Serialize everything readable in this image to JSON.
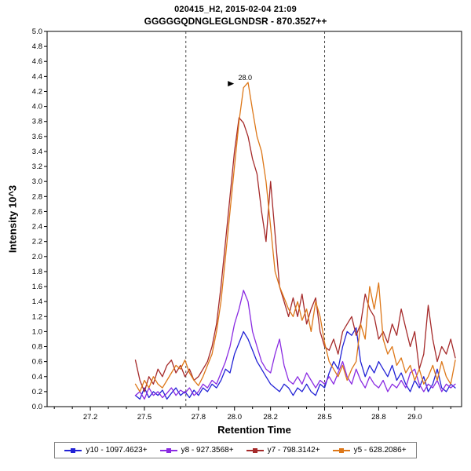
{
  "chart_data": {
    "type": "line",
    "title": "020415_H2, 2015-02-04 21:09",
    "subtitle": "GGGGGQDNGLEGLGNDSR - 870.3527++",
    "xlabel": "Retention Time",
    "ylabel": "Intensity 10^3",
    "xlim": [
      26.96,
      29.26
    ],
    "ylim": [
      0,
      5
    ],
    "y_tick_step": 0.2,
    "x_major_ticks": [
      27.2,
      27.5,
      27.8,
      28.0,
      28.2,
      28.5,
      28.8,
      29.0
    ],
    "x_minor_tick_step": 0.1,
    "grid": false,
    "legend_position": "bottom",
    "peak_boundaries": [
      27.73,
      28.5
    ],
    "annotation": {
      "label": "28.0",
      "x": 28.05,
      "y": 4.35,
      "color": "#cc5500"
    },
    "x_start": 27.45,
    "x_step": 0.025,
    "series": [
      {
        "name": "y10 - 1097.4623+",
        "color": "#2222d6",
        "values": [
          0.15,
          0.1,
          0.25,
          0.12,
          0.2,
          0.15,
          0.22,
          0.1,
          0.18,
          0.25,
          0.15,
          0.2,
          0.12,
          0.22,
          0.15,
          0.25,
          0.2,
          0.3,
          0.25,
          0.35,
          0.5,
          0.45,
          0.7,
          0.85,
          1.0,
          0.9,
          0.75,
          0.6,
          0.5,
          0.4,
          0.3,
          0.25,
          0.2,
          0.3,
          0.25,
          0.15,
          0.25,
          0.2,
          0.3,
          0.2,
          0.15,
          0.3,
          0.25,
          0.45,
          0.6,
          0.5,
          0.8,
          1.0,
          0.95,
          1.05,
          0.6,
          0.4,
          0.55,
          0.45,
          0.6,
          0.5,
          0.4,
          0.55,
          0.35,
          0.45,
          0.3,
          0.2,
          0.35,
          0.25,
          0.4,
          0.2,
          0.3,
          0.5,
          0.25,
          0.2,
          0.3,
          0.25
        ]
      },
      {
        "name": "y8 - 927.3568+",
        "color": "#8a2be2",
        "values": [
          0.15,
          0.2,
          0.1,
          0.25,
          0.15,
          0.2,
          0.12,
          0.18,
          0.25,
          0.15,
          0.22,
          0.18,
          0.25,
          0.15,
          0.2,
          0.3,
          0.25,
          0.35,
          0.3,
          0.45,
          0.6,
          0.8,
          1.1,
          1.3,
          1.55,
          1.4,
          1.0,
          0.8,
          0.6,
          0.5,
          0.45,
          0.7,
          0.9,
          0.55,
          0.35,
          0.3,
          0.4,
          0.3,
          0.45,
          0.35,
          0.25,
          0.35,
          0.3,
          0.4,
          0.3,
          0.45,
          0.6,
          0.4,
          0.3,
          0.5,
          0.35,
          0.25,
          0.4,
          0.3,
          0.25,
          0.35,
          0.2,
          0.3,
          0.25,
          0.35,
          0.25,
          0.45,
          0.5,
          0.3,
          0.2,
          0.3,
          0.25,
          0.35,
          0.2,
          0.3,
          0.25,
          0.3
        ]
      },
      {
        "name": "y7 - 798.3142+",
        "color": "#a52a2a",
        "values": [
          0.62,
          0.35,
          0.2,
          0.4,
          0.3,
          0.5,
          0.4,
          0.55,
          0.62,
          0.45,
          0.55,
          0.4,
          0.5,
          0.35,
          0.4,
          0.5,
          0.6,
          0.8,
          1.1,
          1.6,
          2.2,
          2.8,
          3.4,
          3.85,
          3.78,
          3.6,
          3.3,
          3.1,
          2.6,
          2.2,
          3.0,
          2.3,
          1.6,
          1.4,
          1.2,
          1.45,
          1.2,
          1.5,
          1.1,
          1.3,
          1.45,
          1.0,
          0.8,
          0.75,
          0.9,
          0.7,
          1.0,
          1.1,
          1.2,
          0.95,
          1.1,
          1.5,
          1.3,
          1.2,
          0.9,
          1.0,
          0.85,
          1.1,
          0.95,
          1.3,
          1.05,
          0.8,
          1.0,
          0.5,
          0.7,
          1.35,
          0.9,
          0.6,
          0.8,
          0.7,
          0.9,
          0.65
        ]
      },
      {
        "name": "y5 - 628.2086+",
        "color": "#dd7718",
        "values": [
          0.3,
          0.2,
          0.35,
          0.25,
          0.4,
          0.3,
          0.25,
          0.35,
          0.45,
          0.55,
          0.5,
          0.62,
          0.45,
          0.35,
          0.28,
          0.4,
          0.55,
          0.7,
          1.0,
          1.4,
          2.0,
          2.6,
          3.2,
          3.8,
          4.25,
          4.32,
          3.95,
          3.6,
          3.4,
          3.0,
          2.4,
          1.8,
          1.6,
          1.45,
          1.3,
          1.2,
          1.4,
          1.15,
          1.3,
          1.0,
          1.4,
          1.2,
          0.85,
          0.6,
          0.5,
          0.4,
          0.55,
          0.35,
          0.5,
          0.6,
          1.1,
          0.9,
          1.6,
          1.3,
          1.65,
          0.9,
          0.7,
          0.8,
          0.55,
          0.65,
          0.45,
          0.55,
          0.35,
          0.5,
          0.3,
          0.4,
          0.55,
          0.35,
          0.6,
          0.4,
          0.3,
          0.62
        ]
      }
    ]
  }
}
